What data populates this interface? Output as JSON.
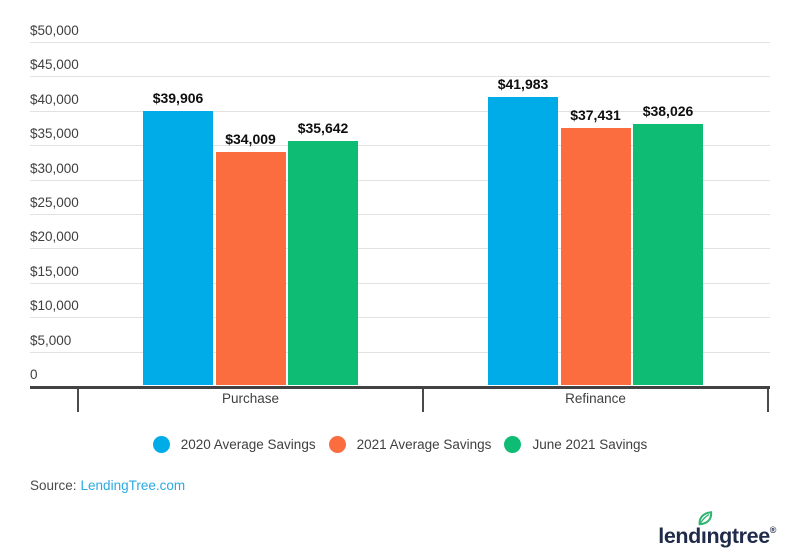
{
  "chart_data": {
    "type": "bar",
    "title": "",
    "xlabel": "",
    "ylabel": "",
    "categories": [
      "Purchase",
      "Refinance"
    ],
    "series": [
      {
        "name": "2020 Average Savings",
        "color": "#00ACE8",
        "values": [
          39906,
          41983
        ],
        "value_labels": [
          "$39,906",
          "$41,983"
        ]
      },
      {
        "name": "2021 Average Savings",
        "color": "#FB6C3F",
        "values": [
          34009,
          37431
        ],
        "value_labels": [
          "$34,009",
          "$37,431"
        ]
      },
      {
        "name": "June 2021 Savings",
        "color": "#0FBC74",
        "values": [
          35642,
          38026
        ],
        "value_labels": [
          "$35,642",
          "$38,026"
        ]
      }
    ],
    "y_axis": {
      "min": 0,
      "max": 50000,
      "tick_values": [
        50000,
        45000,
        40000,
        35000,
        30000,
        25000,
        20000,
        15000,
        10000,
        5000,
        0
      ],
      "tick_labels": [
        "$50,000",
        "$45,000",
        "$40,000",
        "$35,000",
        "$30,000",
        "$25,000",
        "$20,000",
        "$15,000",
        "$10,000",
        "$5,000",
        "0"
      ]
    },
    "grid": true,
    "legend_position": "bottom"
  },
  "footer": {
    "source_prefix": "Source:",
    "source_link_text": "LendingTree.com",
    "source_link_color": "#2BA9E2"
  },
  "branding": {
    "logo_text": "lendingtree",
    "registered_mark": "®",
    "logo_color": "#1F2B49",
    "leaf_color": "#2FB56F",
    "leaf_icon": "leaf-icon"
  }
}
